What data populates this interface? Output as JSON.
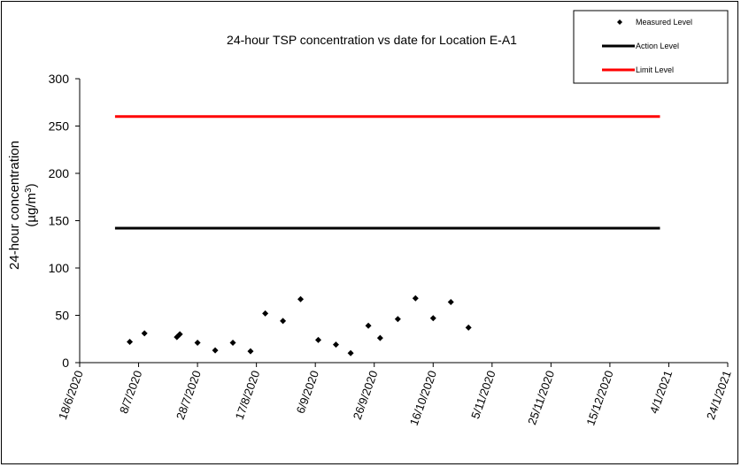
{
  "chart_data": {
    "type": "scatter",
    "title": "24-hour TSP concentration vs date for Location E-A1",
    "ylabel_line1": "24-hour concentration",
    "ylabel_line2_prefix": "(µg/m",
    "ylabel_line2_sup": "3",
    "ylabel_line2_suffix": ")",
    "ylim": [
      0,
      300
    ],
    "yticks": [
      0,
      50,
      100,
      150,
      200,
      250,
      300
    ],
    "xlim": [
      "2020-06-18",
      "2021-01-24"
    ],
    "xtick_dates": [
      "2020-06-18",
      "2020-07-08",
      "2020-07-28",
      "2020-08-17",
      "2020-09-06",
      "2020-09-26",
      "2020-10-16",
      "2020-11-05",
      "2020-11-25",
      "2020-12-15",
      "2021-01-04",
      "2021-01-24"
    ],
    "xtick_labels": [
      "18/6/2020",
      "8/7/2020",
      "28/7/2020",
      "17/8/2020",
      "6/9/2020",
      "26/9/2020",
      "16/10/2020",
      "5/11/2020",
      "25/11/2020",
      "15/12/2020",
      "4/1/2021",
      "24/1/2021"
    ],
    "series": [
      {
        "name": "Measured Level",
        "style": "marker",
        "color": "#000000",
        "points": [
          {
            "x": "2020-07-05",
            "y": 22
          },
          {
            "x": "2020-07-10",
            "y": 31
          },
          {
            "x": "2020-07-21",
            "y": 27
          },
          {
            "x": "2020-07-22",
            "y": 30
          },
          {
            "x": "2020-07-28",
            "y": 21
          },
          {
            "x": "2020-08-03",
            "y": 13
          },
          {
            "x": "2020-08-09",
            "y": 21
          },
          {
            "x": "2020-08-15",
            "y": 12
          },
          {
            "x": "2020-08-20",
            "y": 52
          },
          {
            "x": "2020-08-26",
            "y": 44
          },
          {
            "x": "2020-09-01",
            "y": 67
          },
          {
            "x": "2020-09-07",
            "y": 24
          },
          {
            "x": "2020-09-13",
            "y": 19
          },
          {
            "x": "2020-09-18",
            "y": 10
          },
          {
            "x": "2020-09-24",
            "y": 39
          },
          {
            "x": "2020-09-28",
            "y": 26
          },
          {
            "x": "2020-10-04",
            "y": 46
          },
          {
            "x": "2020-10-10",
            "y": 68
          },
          {
            "x": "2020-10-16",
            "y": 47
          },
          {
            "x": "2020-10-22",
            "y": 64
          },
          {
            "x": "2020-10-28",
            "y": 37
          }
        ]
      },
      {
        "name": "Action Level",
        "style": "line",
        "color": "#000000",
        "points": [
          {
            "x": "2020-06-30",
            "y": 142
          },
          {
            "x": "2021-01-01",
            "y": 142
          }
        ]
      },
      {
        "name": "Limit Level",
        "style": "line",
        "color": "#ff0000",
        "points": [
          {
            "x": "2020-06-30",
            "y": 260
          },
          {
            "x": "2021-01-01",
            "y": 260
          }
        ]
      }
    ],
    "legend_position": "top-right",
    "grid": false
  }
}
